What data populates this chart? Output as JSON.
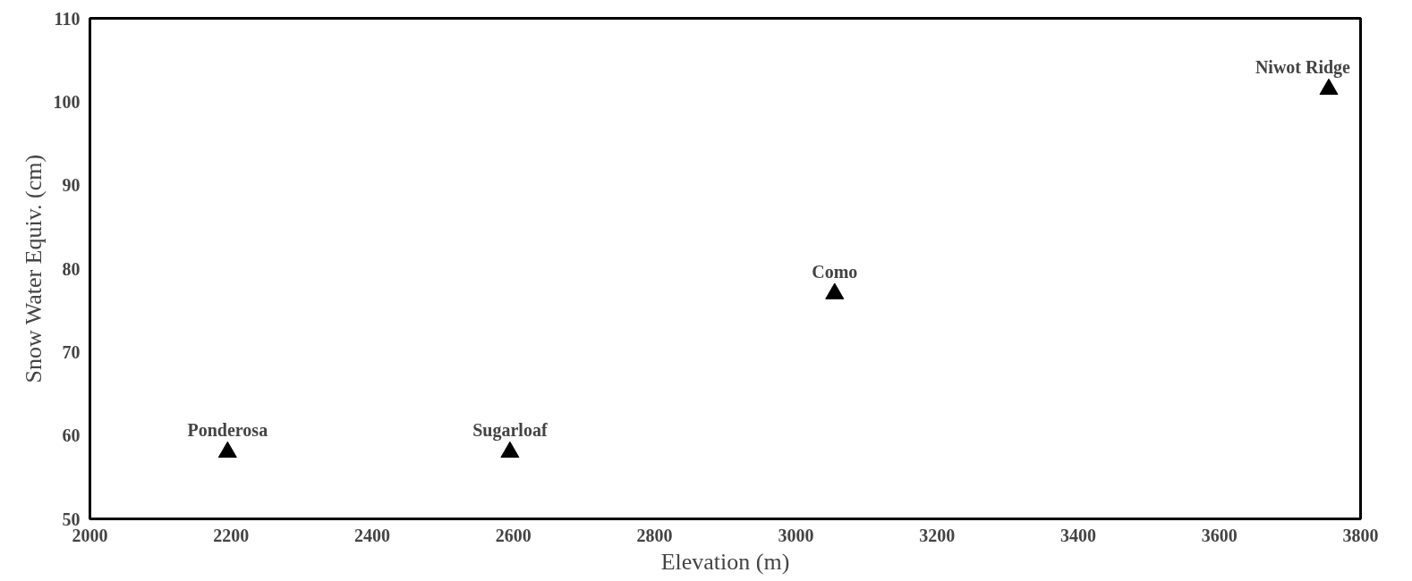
{
  "chart_data": {
    "type": "scatter",
    "xlabel": "Elevation (m)",
    "ylabel": "Snow Water Equiv. (cm)",
    "x": [
      2195,
      2595,
      3055,
      3755
    ],
    "values": [
      58,
      58,
      77,
      101.5
    ],
    "color": "#000000",
    "marker": "triangle",
    "grid": false,
    "xlim": [
      2000,
      3800
    ],
    "xticks": [
      2000,
      2200,
      2400,
      2600,
      2800,
      3000,
      3200,
      3400,
      3600,
      3800
    ],
    "ylim": [
      50,
      110
    ],
    "yticks": [
      50,
      60,
      70,
      80,
      90,
      100,
      110
    ],
    "annotations": [
      {
        "text": "Ponderosa",
        "x": 2195,
        "y": 58
      },
      {
        "text": "Sugarloaf",
        "x": 2595,
        "y": 58
      },
      {
        "text": "Como",
        "x": 3055,
        "y": 77
      },
      {
        "text": "Niwot Ridge",
        "x": 3755,
        "y": 101.5
      }
    ]
  }
}
